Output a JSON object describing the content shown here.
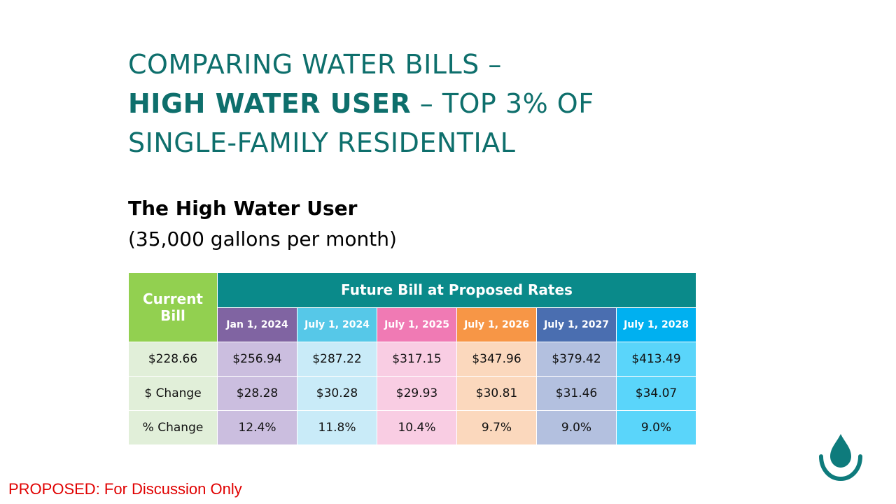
{
  "slide": {
    "title_line1": "COMPARING WATER BILLS –",
    "title_bold": "HIGH WATER USER",
    "title_line2_rest": " – TOP 3% OF",
    "title_line3": "SINGLE-FAMILY RESIDENTIAL",
    "subtitle_bold": "The High Water User",
    "subtitle_normal": "(35,000 gallons per month)",
    "footer_note": "PROPOSED: For Discussion Only"
  },
  "table": {
    "current_header": "Current Bill",
    "future_header": "Future Bill at Proposed Rates",
    "dates": [
      "Jan 1, 2024",
      "July 1, 2024",
      "July 1, 2025",
      "July 1, 2026",
      "July 1, 2027",
      "July 1, 2028"
    ],
    "date_colors": [
      "#8064a2",
      "#56c8e8",
      "#f07ab4",
      "#f79646",
      "#4a6eb0",
      "#00b0f0"
    ],
    "rows": [
      {
        "label": "$228.66",
        "values": [
          "$256.94",
          "$287.22",
          "$317.15",
          "$347.96",
          "$379.42",
          "$413.49"
        ]
      },
      {
        "label": "$ Change",
        "values": [
          "$28.28",
          "$30.28",
          "$29.93",
          "$30.81",
          "$31.46",
          "$34.07"
        ]
      },
      {
        "label": "% Change",
        "values": [
          "12.4%",
          "11.8%",
          "10.4%",
          "9.7%",
          "9.0%",
          "9.0%"
        ]
      }
    ]
  },
  "colors": {
    "title": "#0e6f6c",
    "current_header": "#92d050",
    "future_header": "#0a8a8a",
    "footer_note": "#e00000"
  },
  "logo_icon": "water-drop-icon"
}
